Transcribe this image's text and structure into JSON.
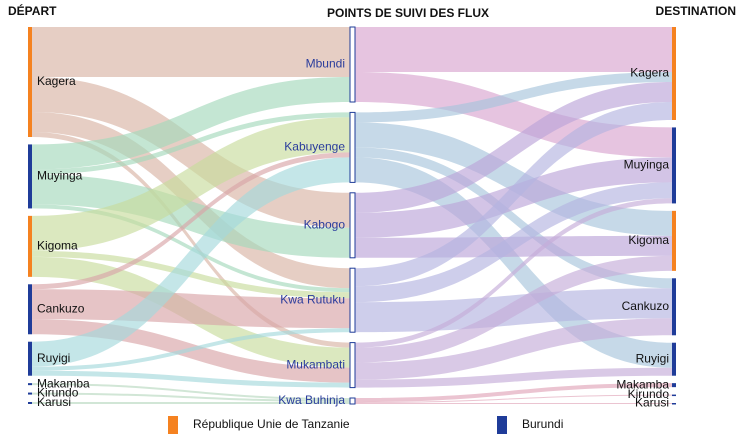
{
  "chart_data": {
    "type": "sankey",
    "column_titles": [
      "DÉPART",
      "POINTS DE SUIVI DES FLUX",
      "DESTINATION"
    ],
    "legend": [
      {
        "name": "République Unie de Tanzanie",
        "color": "#f58220"
      },
      {
        "name": "Burundi",
        "color": "#1f3c99"
      }
    ],
    "nodes": [
      {
        "name": "Kagera",
        "column": 0,
        "group": 0,
        "flow_color": "#d8b4a4"
      },
      {
        "name": "Muyinga",
        "column": 0,
        "group": 1,
        "flow_color": "#a4d8bc"
      },
      {
        "name": "Kigoma",
        "column": 0,
        "group": 0,
        "flow_color": "#c8dc9c"
      },
      {
        "name": "Cankuzo",
        "column": 0,
        "group": 1,
        "flow_color": "#d8a4a8"
      },
      {
        "name": "Ruyigi",
        "column": 0,
        "group": 1,
        "flow_color": "#a4d8dc"
      },
      {
        "name": "Makamba",
        "column": 0,
        "group": 1,
        "flow_color": "#b8d8c0"
      },
      {
        "name": "Kirundo",
        "column": 0,
        "group": 1,
        "flow_color": "#b8d8c0"
      },
      {
        "name": "Karusi",
        "column": 0,
        "group": 1,
        "flow_color": "#b8d8c0"
      },
      {
        "name": "Mbundi",
        "column": 1,
        "flow_color": "#d8a4d0"
      },
      {
        "name": "Kabuyenge",
        "column": 1,
        "flow_color": "#a8c4dc"
      },
      {
        "name": "Kabogo",
        "column": 1,
        "flow_color": "#bca4d8"
      },
      {
        "name": "Kwa Rutuku",
        "column": 1,
        "flow_color": "#b4b4e0"
      },
      {
        "name": "Mukambati",
        "column": 1,
        "flow_color": "#c4acd8"
      },
      {
        "name": "Kwa Buhinja",
        "column": 1,
        "flow_color": "#e0a4b8"
      },
      {
        "name": "Kagera",
        "column": 2,
        "group": 0
      },
      {
        "name": "Muyinga",
        "column": 2,
        "group": 1
      },
      {
        "name": "Kigoma",
        "column": 2,
        "group": 0
      },
      {
        "name": "Cankuzo",
        "column": 2,
        "group": 1
      },
      {
        "name": "Ruyigi",
        "column": 2,
        "group": 1
      },
      {
        "name": "Makamba",
        "column": 2,
        "group": 1
      },
      {
        "name": "Kirundo",
        "column": 2,
        "group": 1
      },
      {
        "name": "Karusi",
        "column": 2,
        "group": 1
      }
    ],
    "links": [
      {
        "source": 0,
        "target": 8,
        "value": 50
      },
      {
        "source": 0,
        "target": 10,
        "value": 35
      },
      {
        "source": 0,
        "target": 11,
        "value": 20
      },
      {
        "source": 0,
        "target": 12,
        "value": 5
      },
      {
        "source": 1,
        "target": 8,
        "value": 25
      },
      {
        "source": 1,
        "target": 9,
        "value": 5
      },
      {
        "source": 1,
        "target": 10,
        "value": 30
      },
      {
        "source": 1,
        "target": 11,
        "value": 4
      },
      {
        "source": 2,
        "target": 9,
        "value": 35
      },
      {
        "source": 2,
        "target": 11,
        "value": 6
      },
      {
        "source": 2,
        "target": 12,
        "value": 20
      },
      {
        "source": 3,
        "target": 9,
        "value": 5
      },
      {
        "source": 3,
        "target": 11,
        "value": 30
      },
      {
        "source": 3,
        "target": 12,
        "value": 15
      },
      {
        "source": 4,
        "target": 9,
        "value": 25
      },
      {
        "source": 4,
        "target": 11,
        "value": 4
      },
      {
        "source": 4,
        "target": 12,
        "value": 5
      },
      {
        "source": 5,
        "target": 13,
        "value": 2
      },
      {
        "source": 6,
        "target": 13,
        "value": 2
      },
      {
        "source": 7,
        "target": 13,
        "value": 2
      },
      {
        "source": 8,
        "target": 14,
        "value": 45
      },
      {
        "source": 8,
        "target": 15,
        "value": 30
      },
      {
        "source": 9,
        "target": 14,
        "value": 10
      },
      {
        "source": 9,
        "target": 16,
        "value": 25
      },
      {
        "source": 9,
        "target": 17,
        "value": 10
      },
      {
        "source": 9,
        "target": 18,
        "value": 25
      },
      {
        "source": 10,
        "target": 14,
        "value": 20
      },
      {
        "source": 10,
        "target": 15,
        "value": 25
      },
      {
        "source": 10,
        "target": 16,
        "value": 20
      },
      {
        "source": 11,
        "target": 14,
        "value": 18
      },
      {
        "source": 11,
        "target": 15,
        "value": 16
      },
      {
        "source": 11,
        "target": 17,
        "value": 30
      },
      {
        "source": 12,
        "target": 15,
        "value": 5
      },
      {
        "source": 12,
        "target": 16,
        "value": 15
      },
      {
        "source": 12,
        "target": 17,
        "value": 17
      },
      {
        "source": 12,
        "target": 18,
        "value": 8
      },
      {
        "source": 13,
        "target": 19,
        "value": 4
      },
      {
        "source": 13,
        "target": 20,
        "value": 1
      },
      {
        "source": 13,
        "target": 21,
        "value": 1
      }
    ]
  }
}
